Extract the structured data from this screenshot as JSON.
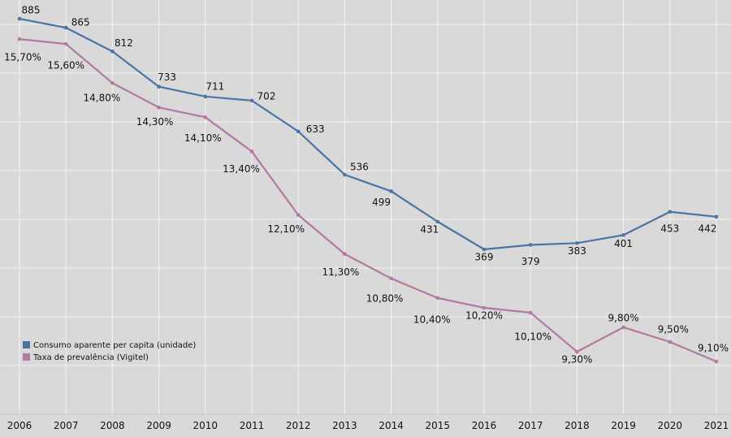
{
  "chart_data": {
    "type": "line",
    "title": "",
    "xlabel": "",
    "ylabel": "",
    "x": [
      "2006",
      "2007",
      "2008",
      "2009",
      "2010",
      "2011",
      "2012",
      "2013",
      "2014",
      "2015",
      "2016",
      "2017",
      "2018",
      "2019",
      "2020",
      "2021"
    ],
    "grid": true,
    "legend_position": "bottom-left",
    "series": [
      {
        "name": "Consumo aparente per capita (unidade)",
        "color": "#4a74a4",
        "axis": "primary",
        "ylim": [
          0,
          927
        ],
        "values": [
          885,
          865,
          812,
          733,
          711,
          702,
          633,
          536,
          499,
          431,
          369,
          379,
          383,
          401,
          453,
          442
        ],
        "labels": [
          "885",
          "865",
          "812",
          "733",
          "711",
          "702",
          "633",
          "536",
          "499",
          "431",
          "369",
          "379",
          "383",
          "401",
          "453",
          "442"
        ]
      },
      {
        "name": "Taxa de prevalência (Vigitel)",
        "color": "#b07aa1",
        "axis": "secondary",
        "ylim": [
          8.02,
          16.5
        ],
        "values": [
          15.7,
          15.6,
          14.8,
          14.3,
          14.1,
          13.4,
          12.1,
          11.3,
          10.8,
          10.4,
          10.2,
          10.1,
          9.3,
          9.8,
          9.5,
          9.1
        ],
        "labels": [
          "15,70%",
          "15,60%",
          "14,80%",
          "14,30%",
          "14,10%",
          "13,40%",
          "12,10%",
          "11,30%",
          "10,80%",
          "10,40%",
          "10,20%",
          "10,10%",
          "9,30%",
          "9,80%",
          "9,50%",
          "9,10%"
        ]
      }
    ]
  }
}
